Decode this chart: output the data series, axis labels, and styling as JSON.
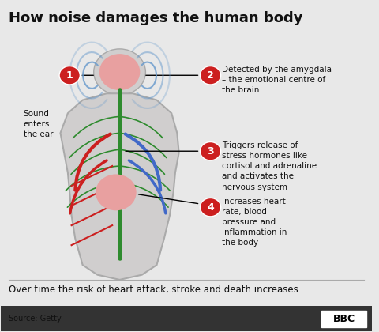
{
  "title": "How noise damages the human body",
  "subtitle": "Over time the risk of heart attack, stroke and death increases",
  "source": "Source: Getty",
  "bbc_label": "BBC",
  "background_color": "#e8e8e8",
  "body_color": "#d0cece",
  "red_color": "#cc1f1f",
  "green_color": "#2e8b2e",
  "blue_color": "#4169c8",
  "brain_color": "#e8a0a0",
  "heart_color": "#e8a0a0",
  "label_circle_color": "#cc1f1f",
  "spine_color": "#2e8b2e",
  "sound_wave_color": "#6699cc"
}
